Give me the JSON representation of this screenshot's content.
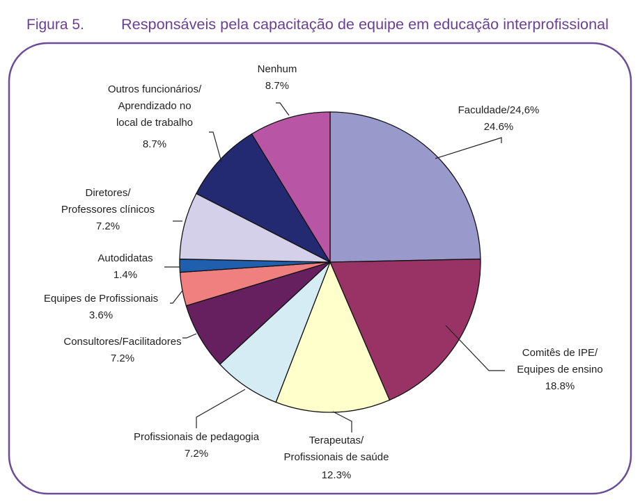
{
  "chart_data": {
    "type": "pie",
    "figure_label": "Figura 5.",
    "title": "Responsáveis pela capacitação de equipe em educação interprofissional",
    "categories": [
      "Faculdade/24,6%",
      "Comitês de IPE/\nEquipes de ensino",
      "Terapeutas/\nProfissionais de saúde",
      "Profissionais de pedagogia",
      "Consultores/Facilitadores",
      "Equipes de Profissionais",
      "Autodidatas",
      "Diretores/\nProfessores clínicos",
      "Outros funcionários/\nAprendizado no\nlocal de trabalho",
      "Nenhum"
    ],
    "values": [
      24.6,
      18.8,
      12.3,
      7.2,
      7.2,
      3.6,
      1.4,
      7.2,
      8.7,
      8.7
    ],
    "value_labels": [
      "24.6%",
      "18.8%",
      "12.3%",
      "7.2%",
      "7.2%",
      "3.6%",
      "1.4%",
      "7.2%",
      "8.7%",
      "8.7%"
    ],
    "colors": [
      "#9999cc",
      "#993366",
      "#ffffcc",
      "#d6ecf5",
      "#66205f",
      "#f08080",
      "#1f5fad",
      "#d5d0ea",
      "#232a72",
      "#b855a5"
    ]
  }
}
